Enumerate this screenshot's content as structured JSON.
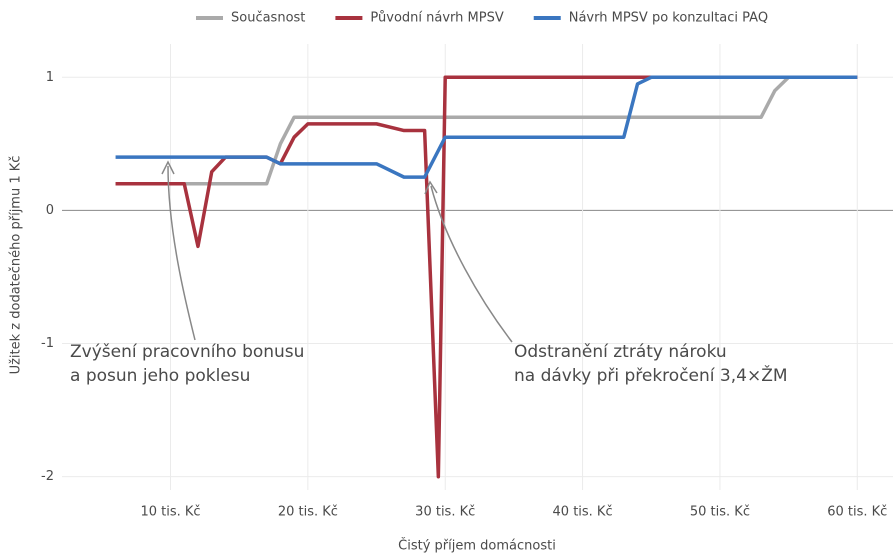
{
  "chart_data": {
    "type": "line",
    "xlabel": "Čistý příjem domácnosti",
    "ylabel": "Užitek z dodatečného příjmu 1 Kč",
    "x": [
      6000,
      11000,
      12000,
      13000,
      14000,
      17000,
      18000,
      19000,
      20000,
      25000,
      27000,
      28500,
      29500,
      30000,
      43000,
      44000,
      45000,
      53000,
      54000,
      55000,
      60000
    ],
    "series": [
      {
        "name": "Současnost",
        "color": "#aaaaaa",
        "values": [
          0.2,
          0.2,
          0.2,
          0.2,
          0.2,
          0.2,
          0.5,
          0.7,
          0.7,
          0.7,
          0.7,
          0.7,
          0.7,
          0.7,
          0.7,
          0.7,
          0.7,
          0.7,
          0.9,
          1,
          1
        ]
      },
      {
        "name": "Původní návrh MPSV",
        "color": "#a8323e",
        "values": [
          0.2,
          0.2,
          -0.27,
          0.29,
          0.4,
          0.4,
          0.35,
          0.55,
          0.65,
          0.65,
          0.6,
          0.6,
          -2,
          1,
          1,
          1,
          1,
          1,
          1,
          1,
          1
        ]
      },
      {
        "name": "Návrh MPSV po konzultaci PAQ",
        "color": "#3a76c0",
        "values": [
          0.4,
          0.4,
          0.4,
          0.4,
          0.4,
          0.4,
          0.35,
          0.35,
          0.35,
          0.35,
          0.25,
          0.25,
          0.45,
          0.55,
          0.55,
          0.95,
          1,
          1,
          1,
          1,
          1
        ]
      }
    ],
    "xlim": [
      2100,
      62600
    ],
    "ylim": [
      -2.1,
      1.25
    ],
    "xticks": [
      {
        "value": 10000,
        "label": "10 tis. Kč"
      },
      {
        "value": 20000,
        "label": "20 tis. Kč"
      },
      {
        "value": 30000,
        "label": "30 tis. Kč"
      },
      {
        "value": 40000,
        "label": "40 tis. Kč"
      },
      {
        "value": 50000,
        "label": "50 tis. Kč"
      },
      {
        "value": 60000,
        "label": "60 tis. Kč"
      }
    ],
    "yticks": [
      -2,
      -1,
      0,
      1
    ],
    "grid": true,
    "legend": "top",
    "annotations": [
      {
        "lines": [
          "Zvýšení pracovního bonusu",
          "a posun jeho poklesu"
        ]
      },
      {
        "lines": [
          "Odstranění ztráty nároku",
          "na dávky při překročení 3,4×ŽM"
        ]
      }
    ]
  }
}
